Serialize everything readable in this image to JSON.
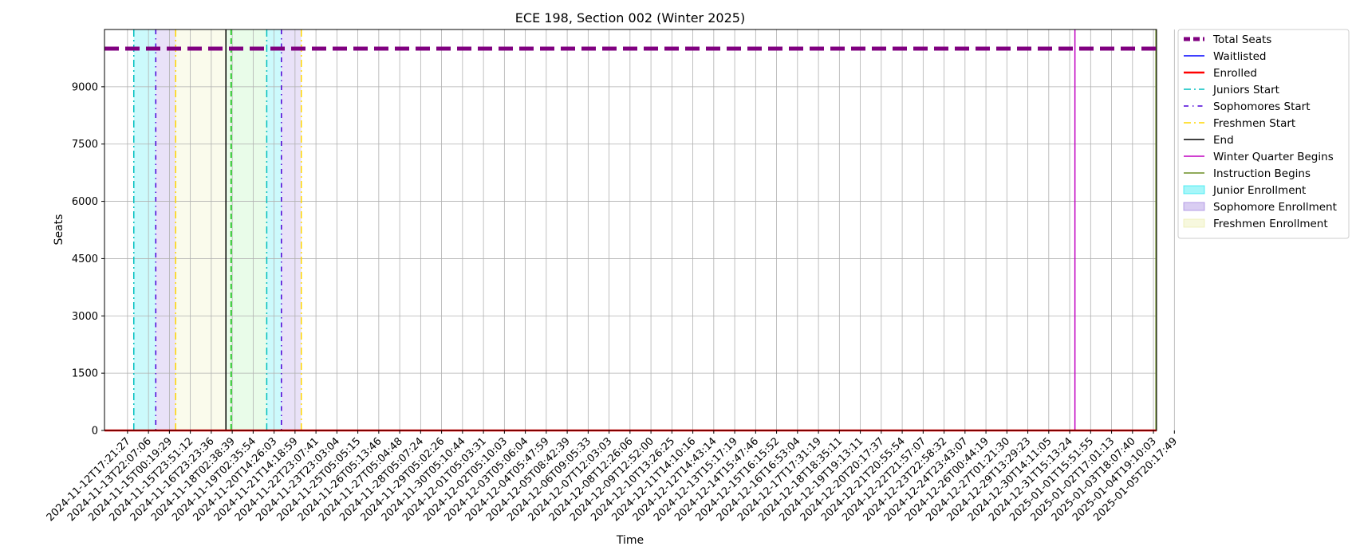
{
  "chart_data": {
    "type": "line",
    "title": "ECE 198, Section 002 (Winter 2025)",
    "xlabel": "Time",
    "ylabel": "Seats",
    "x_tick_labels": [
      "2024-11-12T17:21:27",
      "2024-11-13T22:07:06",
      "2024-11-15T00:19:29",
      "2024-11-15T23:51:12",
      "2024-11-16T23:23:36",
      "2024-11-18T02:38:39",
      "2024-11-19T02:35:54",
      "2024-11-20T14:26:03",
      "2024-11-21T14:18:59",
      "2024-11-22T23:07:41",
      "2024-11-23T23:03:04",
      "2024-11-25T05:05:15",
      "2024-11-26T05:13:46",
      "2024-11-27T05:04:48",
      "2024-11-28T05:07:24",
      "2024-11-29T05:02:26",
      "2024-11-30T05:10:44",
      "2024-12-01T05:03:31",
      "2024-12-02T05:10:03",
      "2024-12-03T05:06:04",
      "2024-12-04T05:47:59",
      "2024-12-05T08:42:39",
      "2024-12-06T09:05:33",
      "2024-12-07T12:03:03",
      "2024-12-08T12:26:06",
      "2024-12-09T12:52:00",
      "2024-12-10T13:26:25",
      "2024-12-11T14:10:16",
      "2024-12-12T14:43:14",
      "2024-12-13T15:17:19",
      "2024-12-14T15:47:46",
      "2024-12-15T16:15:52",
      "2024-12-16T16:53:04",
      "2024-12-17T17:31:19",
      "2024-12-18T18:35:11",
      "2024-12-19T19:13:11",
      "2024-12-20T20:17:37",
      "2024-12-21T20:55:54",
      "2024-12-22T21:57:07",
      "2024-12-23T22:58:32",
      "2024-12-24T23:43:07",
      "2024-12-26T00:44:19",
      "2024-12-27T01:21:30",
      "2024-12-29T13:29:23",
      "2024-12-30T14:11:05",
      "2024-12-31T15:13:24",
      "2025-01-01T15:51:55",
      "2025-01-02T17:01:13",
      "2025-01-03T18:07:40",
      "2025-01-04T19:10:03",
      "2025-01-05T20:17:49"
    ],
    "y_ticks": [
      0,
      1500,
      3000,
      4500,
      6000,
      7500,
      9000
    ],
    "ylim": [
      0,
      10500
    ],
    "xlim_index": [
      -1.1,
      49.15
    ],
    "grid": true,
    "legend_placement": "outside-upper-right",
    "series": [
      {
        "name": "Total Seats",
        "value": 10000,
        "color": "#800080",
        "style": "dashed-thick"
      },
      {
        "name": "Waitlisted",
        "value": 0,
        "color": "#0000ff",
        "style": "solid"
      },
      {
        "name": "Enrolled",
        "value": 0,
        "color": "#ff0000",
        "style": "solid-thick"
      }
    ],
    "vertical_markers": [
      {
        "name": "Juniors Start",
        "x_index": 0.3,
        "color": "#00bfbf",
        "style": "dashdot"
      },
      {
        "name": "Sophomores Start",
        "x_index": 1.35,
        "color": "#4b00d9",
        "style": "dashdot-dense"
      },
      {
        "name": "Freshmen Start",
        "x_index": 2.3,
        "color": "#ffd700",
        "style": "dashdot"
      },
      {
        "name": "End",
        "x_index": 4.7,
        "color": "#000000",
        "style": "solid"
      },
      {
        "name": "",
        "x_index": 4.95,
        "color": "#33cc33",
        "style": "dashed"
      },
      {
        "name": "",
        "x_index": 6.65,
        "color": "#00bfbf",
        "style": "dashdot"
      },
      {
        "name": "",
        "x_index": 7.35,
        "color": "#4b00d9",
        "style": "dashdot-dense"
      },
      {
        "name": "",
        "x_index": 8.3,
        "color": "#ffd700",
        "style": "dashdot"
      },
      {
        "name": "Winter Quarter Begins",
        "x_index": 45.25,
        "color": "#c000c0",
        "style": "solid"
      },
      {
        "name": "Instruction Begins",
        "x_index": 49.12,
        "color": "#6b8e23",
        "style": "solid"
      }
    ],
    "shaded_spans": [
      {
        "name": "Junior Enrollment",
        "from_index": 0.3,
        "to_index": 1.35,
        "color": "#00e5ee"
      },
      {
        "name": "Sophomore Enrollment",
        "from_index": 1.35,
        "to_index": 2.3,
        "color": "#9370db"
      },
      {
        "name": "Freshmen Enrollment",
        "from_index": 2.3,
        "to_index": 4.7,
        "color": "#e8eaa0"
      },
      {
        "name": "",
        "from_index": 4.7,
        "to_index": 6.65,
        "color": "#90ee90"
      },
      {
        "name": "",
        "from_index": 6.65,
        "to_index": 7.35,
        "color": "#00e5ee"
      },
      {
        "name": "",
        "from_index": 7.35,
        "to_index": 8.3,
        "color": "#9370db"
      }
    ],
    "legend": [
      {
        "label": "Total Seats",
        "kind": "line",
        "color": "#800080",
        "style": "dashed-thick"
      },
      {
        "label": "Waitlisted",
        "kind": "line",
        "color": "#0000ff",
        "style": "solid"
      },
      {
        "label": "Enrolled",
        "kind": "line",
        "color": "#ff0000",
        "style": "solid-thick"
      },
      {
        "label": "Juniors Start",
        "kind": "line",
        "color": "#00bfbf",
        "style": "dashdot"
      },
      {
        "label": "Sophomores Start",
        "kind": "line",
        "color": "#4b00d9",
        "style": "dashdot-dense"
      },
      {
        "label": "Freshmen Start",
        "kind": "line",
        "color": "#ffd700",
        "style": "dashdot"
      },
      {
        "label": "End",
        "kind": "line",
        "color": "#000000",
        "style": "solid"
      },
      {
        "label": "Winter Quarter Begins",
        "kind": "line",
        "color": "#c000c0",
        "style": "solid"
      },
      {
        "label": "Instruction Begins",
        "kind": "line",
        "color": "#6b8e23",
        "style": "solid"
      },
      {
        "label": "Junior Enrollment",
        "kind": "patch",
        "color": "#00e5ee"
      },
      {
        "label": "Sophomore Enrollment",
        "kind": "patch",
        "color": "#9370db"
      },
      {
        "label": "Freshmen Enrollment",
        "kind": "patch",
        "color": "#e8eaa0"
      }
    ]
  }
}
